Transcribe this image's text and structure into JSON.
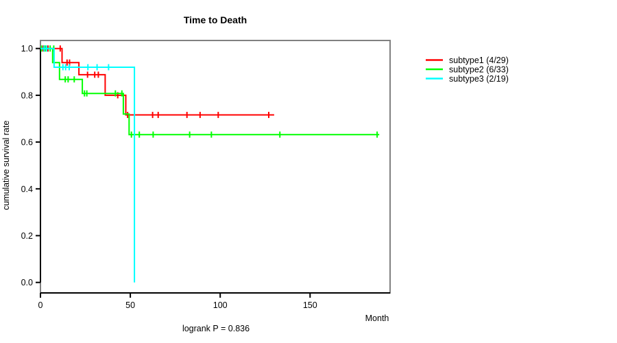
{
  "title": "Time to Death",
  "x_axis_label": "Month",
  "y_axis_label": "cumulative survival rate",
  "annotation": "logrank P = 0.836",
  "colors": {
    "subtype1": "#ff0000",
    "subtype2": "#00ff00",
    "subtype3": "#00ffff",
    "frame": "#808080",
    "axis": "#000000"
  },
  "legend": {
    "items": [
      {
        "label": "subtype1 (4/29)",
        "color": "#ff0000"
      },
      {
        "label": "subtype2 (6/33)",
        "color": "#00ff00"
      },
      {
        "label": "subtype3 (2/19)",
        "color": "#00ffff"
      }
    ]
  },
  "chart_data": {
    "type": "line",
    "subtype": "kaplan-meier-step",
    "title": "Time to Death",
    "xlabel": "Month",
    "ylabel": "cumulative survival rate",
    "xlim": [
      0,
      194
    ],
    "ylim": [
      0,
      1
    ],
    "x_ticks": [
      0,
      50,
      100,
      150
    ],
    "x_tick_labels": [
      "0",
      "50",
      "100",
      "150"
    ],
    "y_ticks": [
      0.0,
      0.2,
      0.4,
      0.6,
      0.8,
      1.0
    ],
    "y_tick_labels": [
      "0.0",
      "0.2",
      "0.4",
      "0.6",
      "0.8",
      "1.0"
    ],
    "grid": false,
    "legend_position": "outside-top-right",
    "annotation": "logrank P = 0.836",
    "series": [
      {
        "name": "subtype1 (4/29)",
        "events": "4/29",
        "color": "#ff0000",
        "steps": [
          [
            0,
            1.0
          ],
          [
            12,
            1.0
          ],
          [
            12,
            0.94
          ],
          [
            21.4,
            0.94
          ],
          [
            21.4,
            0.888
          ],
          [
            36,
            0.888
          ],
          [
            36,
            0.8
          ],
          [
            47.5,
            0.8
          ],
          [
            47.5,
            0.716
          ],
          [
            130,
            0.716
          ]
        ],
        "censor_marks": [
          [
            1.5,
            1.0
          ],
          [
            4.2,
            1.0
          ],
          [
            11,
            1.0
          ],
          [
            14.8,
            0.94
          ],
          [
            16.2,
            0.94
          ],
          [
            26.2,
            0.888
          ],
          [
            30.2,
            0.888
          ],
          [
            32.2,
            0.888
          ],
          [
            43,
            0.8
          ],
          [
            48.5,
            0.716
          ],
          [
            62.4,
            0.716
          ],
          [
            65.5,
            0.716
          ],
          [
            81.5,
            0.716
          ],
          [
            88.8,
            0.716
          ],
          [
            98.9,
            0.716
          ],
          [
            127,
            0.716
          ]
        ]
      },
      {
        "name": "subtype2 (6/33)",
        "events": "6/33",
        "color": "#00ff00",
        "steps": [
          [
            0,
            1.0
          ],
          [
            6.8,
            1.0
          ],
          [
            6.8,
            0.94
          ],
          [
            10.6,
            0.94
          ],
          [
            10.6,
            0.868
          ],
          [
            23.3,
            0.868
          ],
          [
            23.3,
            0.808
          ],
          [
            46.1,
            0.808
          ],
          [
            46.1,
            0.72
          ],
          [
            49.3,
            0.72
          ],
          [
            49.3,
            0.632
          ],
          [
            188.5,
            0.632
          ]
        ],
        "censor_marks": [
          [
            0.6,
            1.0
          ],
          [
            2.6,
            1.0
          ],
          [
            5.4,
            1.0
          ],
          [
            7.4,
            1.0
          ],
          [
            13.8,
            0.868
          ],
          [
            15.4,
            0.868
          ],
          [
            18.8,
            0.868
          ],
          [
            24.5,
            0.808
          ],
          [
            25.8,
            0.808
          ],
          [
            41.7,
            0.808
          ],
          [
            45.3,
            0.808
          ],
          [
            50.6,
            0.632
          ],
          [
            55,
            0.632
          ],
          [
            62.7,
            0.632
          ],
          [
            83,
            0.632
          ],
          [
            95.1,
            0.632
          ],
          [
            133.2,
            0.632
          ],
          [
            187.3,
            0.632
          ]
        ]
      },
      {
        "name": "subtype3 (2/19)",
        "events": "2/19",
        "color": "#00ffff",
        "steps": [
          [
            0,
            1.0
          ],
          [
            7.6,
            1.0
          ],
          [
            7.6,
            0.92
          ],
          [
            52.3,
            0.92
          ],
          [
            52.3,
            0.0
          ]
        ],
        "censor_marks": [
          [
            2.0,
            1.0
          ],
          [
            3.4,
            1.0
          ],
          [
            12.5,
            0.92
          ],
          [
            14.0,
            0.92
          ],
          [
            16.0,
            0.92
          ],
          [
            26.4,
            0.92
          ],
          [
            31.5,
            0.92
          ],
          [
            37.9,
            0.92
          ]
        ]
      }
    ]
  }
}
